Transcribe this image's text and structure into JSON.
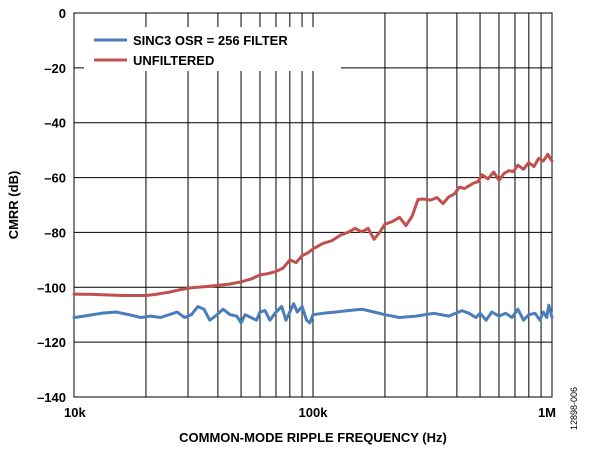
{
  "chart_data": {
    "type": "line",
    "title": "",
    "xlabel": "COMMON-MODE RIPPLE FREQUENCY (Hz)",
    "ylabel": "CMRR (dB)",
    "x_scale": "log",
    "xlim": [
      10000,
      1000000
    ],
    "ylim": [
      -140,
      0
    ],
    "x_ticks": [
      10000,
      100000,
      1000000
    ],
    "x_tick_labels": [
      "10k",
      "100k",
      "1M"
    ],
    "y_ticks": [
      0,
      -20,
      -40,
      -60,
      -80,
      -100,
      -120,
      -140
    ],
    "y_tick_labels": [
      "0",
      "–20",
      "–40",
      "–60",
      "–80",
      "–100",
      "–120",
      "–140"
    ],
    "grid": true,
    "legend_position": "top-left",
    "figure_id": "12898-006",
    "series": [
      {
        "name": "SINC3 OSR = 256 FILTER",
        "color": "#4a7ebb",
        "x": [
          10000,
          11000,
          13000,
          15000,
          17000,
          19000,
          21000,
          23000,
          25000,
          27000,
          29000,
          31000,
          33000,
          35000,
          37000,
          39000,
          42000,
          45000,
          48000,
          50000,
          52000,
          55000,
          58000,
          60000,
          63000,
          66000,
          70000,
          74000,
          77000,
          80000,
          83000,
          86000,
          90000,
          94000,
          97000,
          100000,
          110000,
          125000,
          140000,
          160000,
          180000,
          200000,
          230000,
          270000,
          320000,
          370000,
          420000,
          450000,
          480000,
          500000,
          530000,
          560000,
          600000,
          640000,
          680000,
          720000,
          760000,
          800000,
          850000,
          890000,
          920000,
          950000,
          970000,
          1000000
        ],
        "y": [
          -111,
          -110.5,
          -109.5,
          -109,
          -110,
          -111,
          -110.5,
          -111,
          -110,
          -109,
          -111,
          -110,
          -107,
          -108,
          -112,
          -110.5,
          -108,
          -110,
          -110.5,
          -113,
          -110,
          -111,
          -112,
          -109,
          -108.5,
          -112,
          -109,
          -107,
          -112,
          -109,
          -106,
          -109,
          -107,
          -112,
          -113,
          -110,
          -109.5,
          -109,
          -108.5,
          -108,
          -109,
          -110,
          -111,
          -110.5,
          -109.5,
          -110.5,
          -108.5,
          -109.5,
          -111,
          -109.5,
          -112,
          -109,
          -110.5,
          -109.5,
          -111,
          -108,
          -112,
          -110,
          -109.5,
          -112,
          -109,
          -111,
          -106.5,
          -111
        ]
      },
      {
        "name": "UNFILTERED",
        "color": "#c0504d",
        "x": [
          10000,
          12000,
          14000,
          16000,
          18000,
          20000,
          22000,
          25000,
          28000,
          31000,
          35000,
          40000,
          45000,
          50000,
          55000,
          60000,
          65000,
          70000,
          75000,
          80000,
          85000,
          90000,
          95000,
          100000,
          110000,
          120000,
          130000,
          140000,
          150000,
          160000,
          170000,
          180000,
          190000,
          200000,
          215000,
          230000,
          245000,
          260000,
          275000,
          290000,
          310000,
          330000,
          350000,
          370000,
          390000,
          410000,
          430000,
          450000,
          470000,
          490000,
          510000,
          540000,
          570000,
          600000,
          630000,
          660000,
          690000,
          720000,
          760000,
          800000,
          840000,
          880000,
          920000,
          960000,
          1000000
        ],
        "y": [
          -102.5,
          -102.6,
          -102.8,
          -103,
          -103,
          -103,
          -102.6,
          -101.8,
          -100.8,
          -100.2,
          -99.8,
          -99.3,
          -98.8,
          -98,
          -97,
          -95.5,
          -95,
          -94.2,
          -93,
          -90,
          -91,
          -88.5,
          -87.5,
          -86,
          -84,
          -83,
          -81,
          -80,
          -78.5,
          -79.8,
          -78.5,
          -82.5,
          -80,
          -77,
          -76,
          -74.5,
          -77.5,
          -74,
          -68,
          -67.8,
          -68.2,
          -67.3,
          -69.5,
          -67,
          -66,
          -63.5,
          -64,
          -63,
          -62,
          -61.5,
          -59,
          -60.5,
          -58,
          -61,
          -58.5,
          -57.5,
          -57.8,
          -55.5,
          -57,
          -54.5,
          -56,
          -53,
          -54,
          -51.5,
          -54
        ]
      }
    ]
  }
}
